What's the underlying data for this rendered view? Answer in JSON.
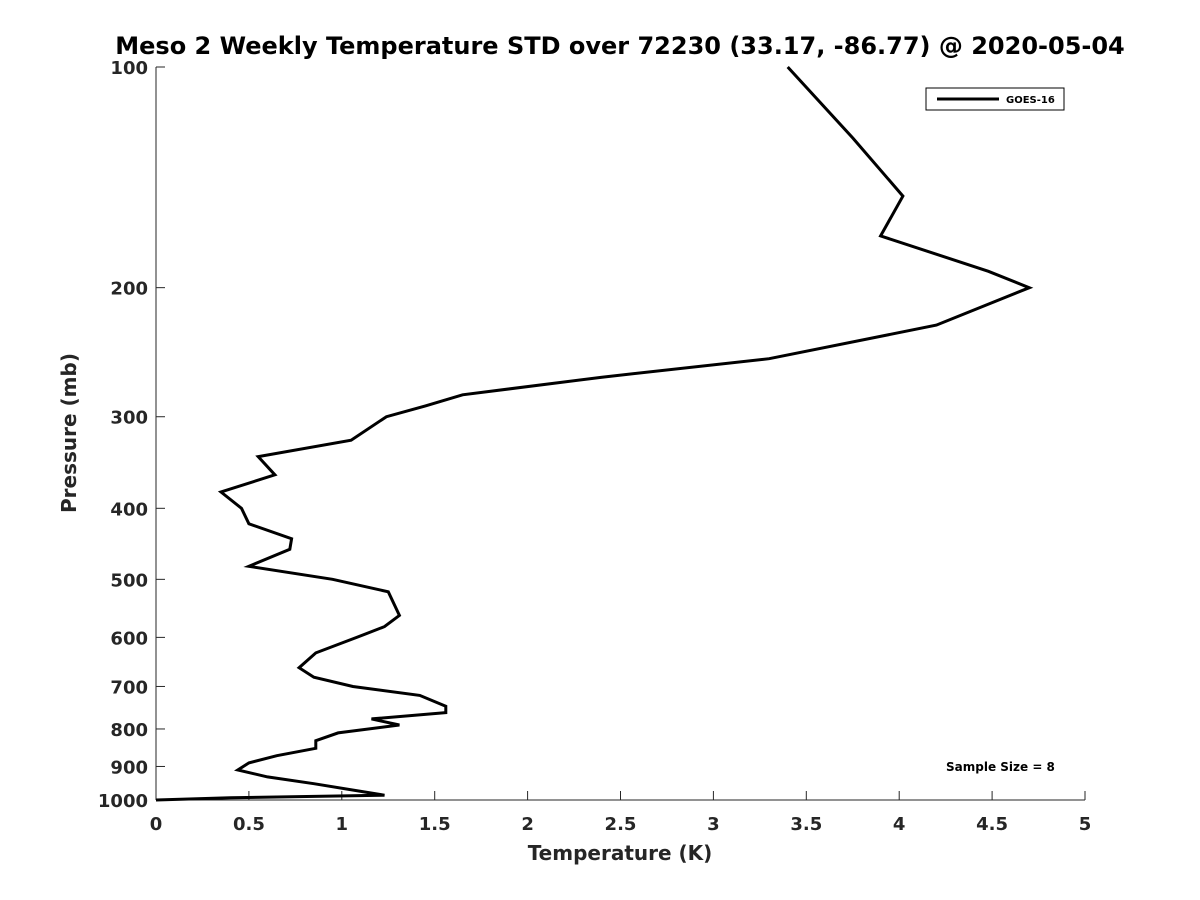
{
  "chart_data": {
    "type": "line",
    "title": "Meso 2 Weekly Temperature STD over 72230 (33.17, -86.77) @ 2020-05-04",
    "xlabel": "Temperature (K)",
    "ylabel": "Pressure (mb)",
    "xlim": [
      0,
      5
    ],
    "ylim": [
      100,
      1000
    ],
    "y_scale": "log",
    "y_reversed": true,
    "x_ticks": [
      "0",
      "0.5",
      "1",
      "1.5",
      "2",
      "2.5",
      "3",
      "3.5",
      "4",
      "4.5",
      "5"
    ],
    "y_ticks": [
      "100",
      "200",
      "300",
      "400",
      "500",
      "600",
      "700",
      "800",
      "900",
      "1000"
    ],
    "grid": false,
    "legend_position": "top-right",
    "series": [
      {
        "name": "GOES-16",
        "color": "#000000",
        "points": [
          [
            3.4,
            100
          ],
          [
            3.75,
            125
          ],
          [
            4.02,
            150
          ],
          [
            3.9,
            170
          ],
          [
            4.48,
            190
          ],
          [
            4.7,
            200
          ],
          [
            4.2,
            225
          ],
          [
            3.3,
            250
          ],
          [
            2.4,
            265
          ],
          [
            1.65,
            280
          ],
          [
            1.45,
            290
          ],
          [
            1.24,
            300
          ],
          [
            1.05,
            323
          ],
          [
            0.55,
            340
          ],
          [
            0.64,
            360
          ],
          [
            0.35,
            380
          ],
          [
            0.46,
            400
          ],
          [
            0.5,
            420
          ],
          [
            0.73,
            440
          ],
          [
            0.72,
            455
          ],
          [
            0.5,
            480
          ],
          [
            0.95,
            500
          ],
          [
            1.25,
            520
          ],
          [
            1.31,
            560
          ],
          [
            1.23,
            580
          ],
          [
            1.08,
            600
          ],
          [
            0.86,
            630
          ],
          [
            0.77,
            660
          ],
          [
            0.85,
            680
          ],
          [
            1.06,
            700
          ],
          [
            1.42,
            720
          ],
          [
            1.56,
            745
          ],
          [
            1.56,
            760
          ],
          [
            1.16,
            775
          ],
          [
            1.31,
            790
          ],
          [
            0.98,
            810
          ],
          [
            0.86,
            830
          ],
          [
            0.86,
            850
          ],
          [
            0.65,
            870
          ],
          [
            0.5,
            890
          ],
          [
            0.44,
            910
          ],
          [
            0.6,
            930
          ],
          [
            0.85,
            950
          ],
          [
            1.23,
            985
          ],
          [
            0.4,
            993
          ],
          [
            0.0,
            1000
          ]
        ]
      }
    ],
    "annotations": [
      "Sample Size = 8"
    ]
  }
}
